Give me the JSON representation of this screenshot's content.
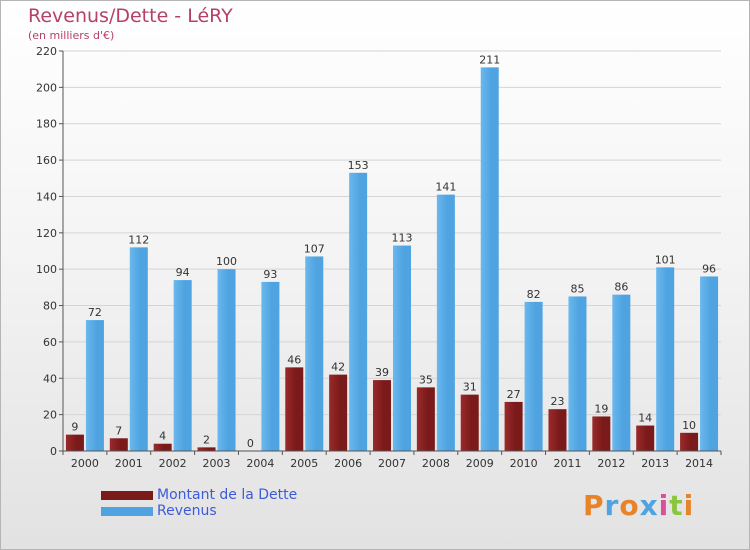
{
  "title": "Revenus/Dette - LéRY",
  "subtitle": "(en milliers d'€)",
  "colors": {
    "dette": "#7a1a1a",
    "revenus": "#4ea3e0",
    "title": "#b5406a",
    "legend_text": "#3d5bd9"
  },
  "legend": {
    "dette_label": "Montant de la Dette",
    "revenus_label": "Revenus",
    "placement": "bottom-left"
  },
  "logo": {
    "text": "Proxiti",
    "letters": [
      "P",
      "r",
      "o",
      "x",
      "i",
      "t",
      "i"
    ],
    "letter_colors": [
      "#e8832a",
      "#4ea3e0",
      "#e8832a",
      "#4ea3e0",
      "#d94f9a",
      "#8cc63f",
      "#e8832a"
    ]
  },
  "chart_data": {
    "type": "bar",
    "title": "Revenus/Dette - LéRY",
    "subtitle": "(en milliers d'€)",
    "categories": [
      "2000",
      "2001",
      "2002",
      "2003",
      "2004",
      "2005",
      "2006",
      "2007",
      "2008",
      "2009",
      "2010",
      "2011",
      "2012",
      "2013",
      "2014"
    ],
    "series": [
      {
        "name": "Montant de la Dette",
        "values": [
          9,
          7,
          4,
          2,
          0,
          46,
          42,
          39,
          35,
          31,
          27,
          23,
          19,
          14,
          10
        ]
      },
      {
        "name": "Revenus",
        "values": [
          72,
          112,
          94,
          100,
          93,
          107,
          153,
          113,
          141,
          211,
          82,
          85,
          86,
          101,
          96
        ]
      }
    ],
    "ylim": [
      0,
      220
    ],
    "yticks": [
      0,
      20,
      40,
      60,
      80,
      100,
      120,
      140,
      160,
      180,
      200,
      220
    ],
    "grid": true,
    "legend": "bottom-left"
  }
}
